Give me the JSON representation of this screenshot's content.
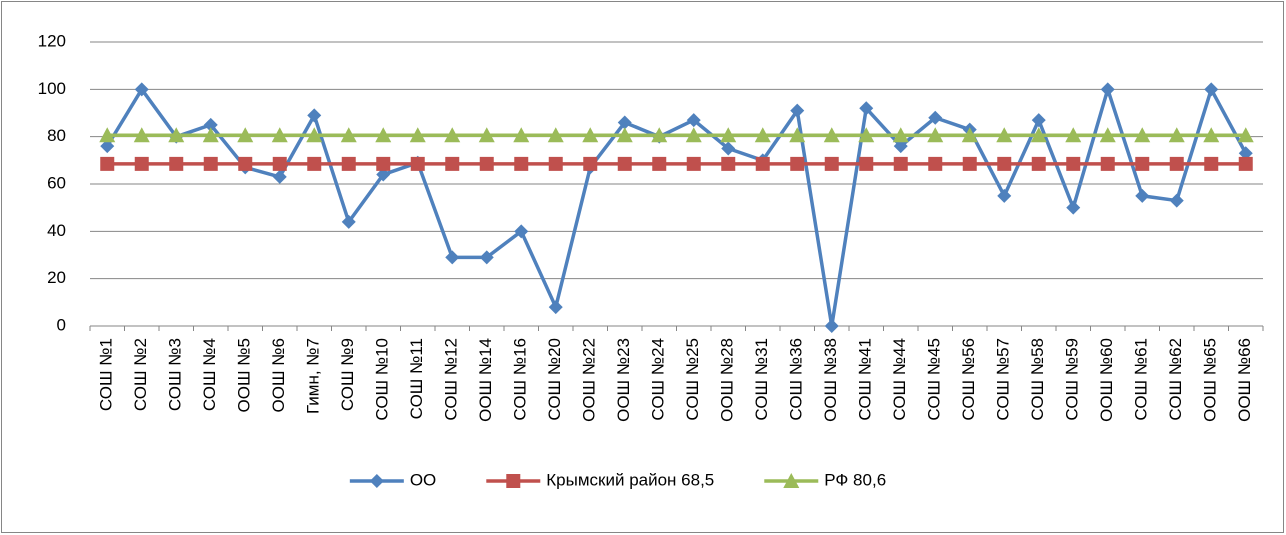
{
  "chart_data": {
    "type": "line",
    "categories": [
      "СОШ №1",
      "СОШ №2",
      "СОШ №3",
      "СОШ №4",
      "ООШ №5",
      "ООШ №6",
      "Гимн, №7",
      "СОШ №9",
      "СОШ №10",
      "СОШ №11",
      "СОШ №12",
      "ООШ №14",
      "СОШ №16",
      "СОШ №20",
      "ООШ №22",
      "ООШ №23",
      "СОШ №24",
      "СОШ №25",
      "ООШ №28",
      "СОШ №31",
      "СОШ №36",
      "ООШ №38",
      "СОШ №41",
      "СОШ №44",
      "СОШ №45",
      "СОШ №56",
      "СОШ №57",
      "СОШ №58",
      "СОШ №59",
      "ООШ №60",
      "СОШ №61",
      "СОШ №62",
      "ООШ №65",
      "ООШ №66"
    ],
    "series": [
      {
        "name": "ОО",
        "color": "#4f81bd",
        "marker": "diamond",
        "values": [
          76,
          100,
          80,
          85,
          67,
          63,
          89,
          44,
          64,
          69,
          29,
          29,
          40,
          8,
          67,
          86,
          80,
          87,
          75,
          70,
          91,
          0,
          92,
          76,
          88,
          83,
          55,
          87,
          50,
          100,
          55,
          53,
          100,
          73
        ]
      },
      {
        "name": "Крымский район 68,5",
        "color": "#c0504d",
        "marker": "square",
        "values": [
          68.5,
          68.5,
          68.5,
          68.5,
          68.5,
          68.5,
          68.5,
          68.5,
          68.5,
          68.5,
          68.5,
          68.5,
          68.5,
          68.5,
          68.5,
          68.5,
          68.5,
          68.5,
          68.5,
          68.5,
          68.5,
          68.5,
          68.5,
          68.5,
          68.5,
          68.5,
          68.5,
          68.5,
          68.5,
          68.5,
          68.5,
          68.5,
          68.5,
          68.5
        ]
      },
      {
        "name": "РФ 80,6",
        "color": "#9bbb59",
        "marker": "triangle",
        "values": [
          80.6,
          80.6,
          80.6,
          80.6,
          80.6,
          80.6,
          80.6,
          80.6,
          80.6,
          80.6,
          80.6,
          80.6,
          80.6,
          80.6,
          80.6,
          80.6,
          80.6,
          80.6,
          80.6,
          80.6,
          80.6,
          80.6,
          80.6,
          80.6,
          80.6,
          80.6,
          80.6,
          80.6,
          80.6,
          80.6,
          80.6,
          80.6,
          80.6,
          80.6
        ]
      }
    ],
    "ylim": [
      0,
      120
    ],
    "yticks": [
      0,
      20,
      40,
      60,
      80,
      100,
      120
    ],
    "grid": true,
    "legend": "bottom"
  }
}
